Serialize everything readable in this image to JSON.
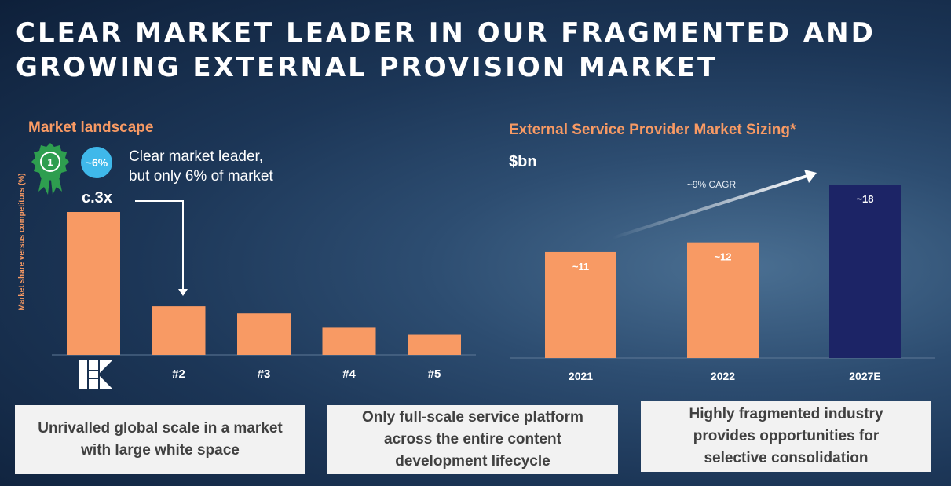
{
  "title": {
    "line1": "CLEAR MARKET LEADER IN OUR FRAGMENTED AND",
    "line2": "GROWING EXTERNAL PROVISION MARKET"
  },
  "left_panel": {
    "heading": "Market landscape",
    "badge": "~6%",
    "rosette_number": "1",
    "leader_text": {
      "line1": "Clear market leader,",
      "line2": "but only 6% of market"
    },
    "multiple_label": "c.3x",
    "logo_icon": "company-logo-icon"
  },
  "right_panel": {
    "heading": "External Service Provider Market Sizing*",
    "unit": "$bn",
    "cagr_label": "~9% CAGR"
  },
  "chart_data": [
    {
      "type": "bar",
      "title": "Market landscape",
      "xlabel": "",
      "ylabel": "Market share versus competitors (%)",
      "categories": [
        "",
        "#2",
        "#3",
        "#4",
        "#5"
      ],
      "values": [
        100,
        34,
        29,
        19,
        14
      ],
      "ylim": [
        0,
        100
      ],
      "grid": false,
      "colors": [
        "#f89a64"
      ]
    },
    {
      "type": "bar",
      "title": "External Service Provider Market Sizing*",
      "xlabel": "",
      "ylabel": "$bn",
      "categories": [
        "2021",
        "2022",
        "2027E"
      ],
      "values": [
        11,
        12,
        18
      ],
      "value_labels": [
        "~11",
        "~12",
        "~18"
      ],
      "ylim": [
        0,
        18
      ],
      "grid": false,
      "colors": [
        "#f89a64",
        "#f89a64",
        "#1c2466"
      ]
    }
  ],
  "cards": [
    {
      "line1": "Unrivalled global scale in a market",
      "line2": "with large white space"
    },
    {
      "line1": "Only full-scale service platform",
      "line2": "across the entire content",
      "line3": "development lifecycle"
    },
    {
      "line1": "Highly fragmented industry",
      "line2": "provides opportunities for",
      "line3": "selective consolidation"
    }
  ],
  "colors": {
    "accent": "#f89a64",
    "navy": "#1c2466",
    "badge": "#3fb8ea",
    "rosette": "#2e9e4f"
  }
}
